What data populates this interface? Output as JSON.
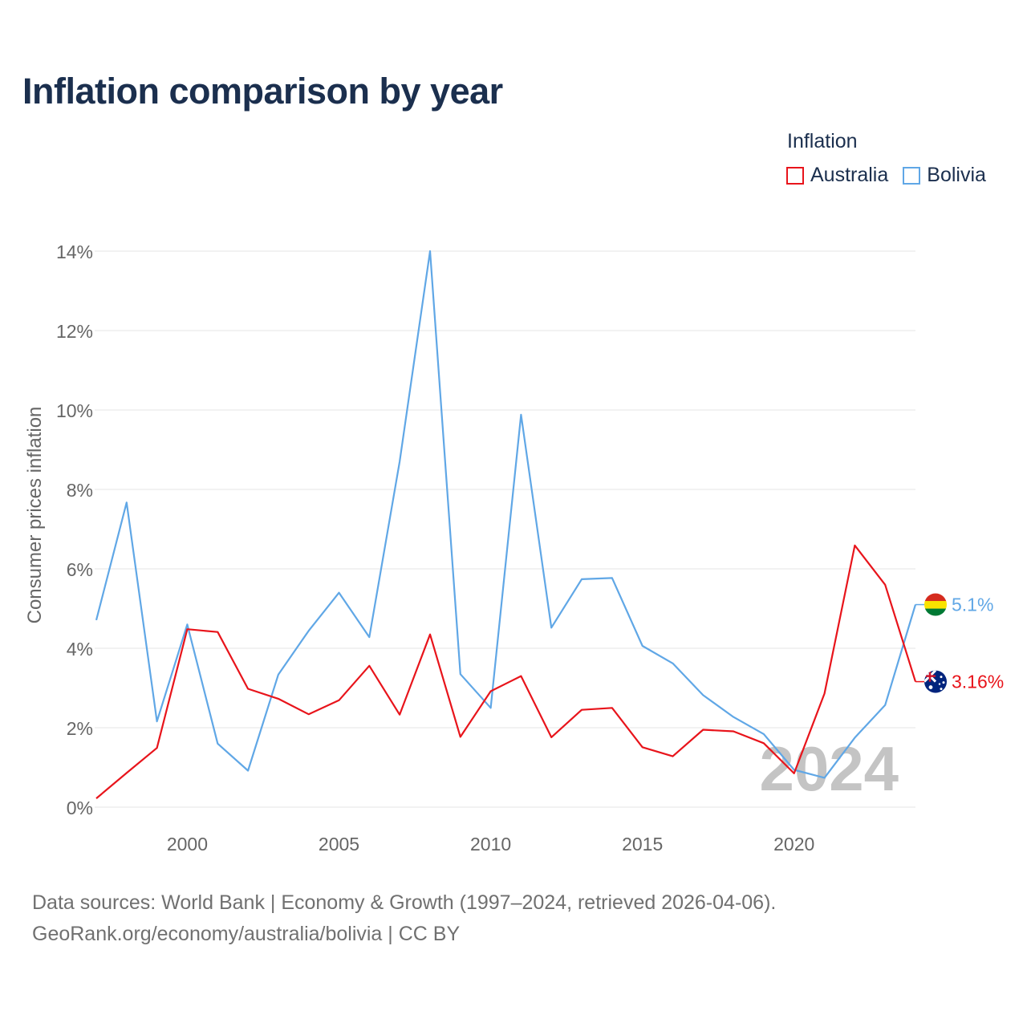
{
  "title": "Inflation comparison by year",
  "legend": {
    "title": "Inflation",
    "items": [
      {
        "label": "Australia",
        "color": "#e8141b"
      },
      {
        "label": "Bolivia",
        "color": "#60a7e6"
      }
    ]
  },
  "footer": {
    "line1": "Data sources: World Bank | Economy & Growth (1997–2024, retrieved 2026-04-06).",
    "line2": "GeoRank.org/economy/australia/bolivia | CC BY"
  },
  "chart_data": {
    "type": "line",
    "title": "Inflation comparison by year",
    "xlabel": "",
    "ylabel": "Consumer prices inflation",
    "xlim": [
      1997,
      2024
    ],
    "ylim": [
      0,
      14
    ],
    "yticks": [
      0,
      2,
      4,
      6,
      8,
      10,
      12,
      14
    ],
    "ytick_labels": [
      "0%",
      "2%",
      "4%",
      "6%",
      "8%",
      "10%",
      "12%",
      "14%"
    ],
    "xticks": [
      2000,
      2005,
      2010,
      2015,
      2020
    ],
    "xtick_labels": [
      "2000",
      "2005",
      "2010",
      "2015",
      "2020"
    ],
    "grid": true,
    "watermark": "2024",
    "x": [
      1997,
      1998,
      1999,
      2000,
      2001,
      2002,
      2003,
      2004,
      2005,
      2006,
      2007,
      2008,
      2009,
      2010,
      2011,
      2012,
      2013,
      2014,
      2015,
      2016,
      2017,
      2018,
      2019,
      2020,
      2021,
      2022,
      2023,
      2024
    ],
    "series": [
      {
        "name": "Australia",
        "color": "#e8141b",
        "end_label": "3.16%",
        "flag": "australia-flag",
        "values": [
          0.22,
          0.86,
          1.49,
          4.48,
          4.41,
          2.98,
          2.73,
          2.34,
          2.69,
          3.56,
          2.33,
          4.35,
          1.77,
          2.92,
          3.3,
          1.76,
          2.45,
          2.5,
          1.51,
          1.28,
          1.95,
          1.91,
          1.61,
          0.85,
          2.86,
          6.59,
          5.6,
          3.16
        ]
      },
      {
        "name": "Bolivia",
        "color": "#60a7e6",
        "end_label": "5.1%",
        "flag": "bolivia-flag",
        "values": [
          4.71,
          7.67,
          2.16,
          4.6,
          1.6,
          0.92,
          3.34,
          4.44,
          5.4,
          4.28,
          8.7,
          14.0,
          3.35,
          2.5,
          9.88,
          4.52,
          5.74,
          5.77,
          4.06,
          3.62,
          2.82,
          2.27,
          1.84,
          0.94,
          0.74,
          1.75,
          2.57,
          5.1
        ]
      }
    ]
  }
}
